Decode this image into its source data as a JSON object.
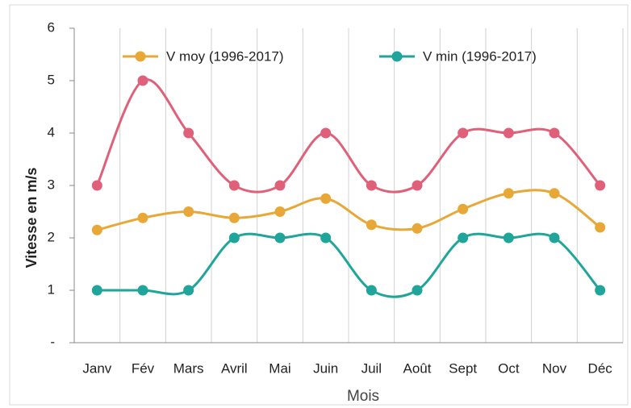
{
  "chart_data": {
    "type": "line",
    "categories": [
      "Janv",
      "Fév",
      "Mars",
      "Avril",
      "Mai",
      "Juin",
      "Juil",
      "Août",
      "Sept",
      "Oct",
      "Nov",
      "Déc"
    ],
    "series": [
      {
        "color": "#e0607a",
        "values": [
          3,
          5,
          4,
          3,
          3,
          4,
          3,
          3,
          4,
          4,
          4,
          3
        ]
      },
      {
        "name": "V moy (1996-2017)",
        "color": "#e8a838",
        "values": [
          2.15,
          2.38,
          2.5,
          2.38,
          2.5,
          2.75,
          2.25,
          2.18,
          2.55,
          2.85,
          2.85,
          2.2
        ]
      },
      {
        "name": "V min (1996-2017)",
        "color": "#1fa59a",
        "values": [
          1,
          1,
          1,
          2,
          2,
          2,
          1,
          1,
          2,
          2,
          2,
          1
        ]
      }
    ],
    "ylim": [
      0,
      6
    ],
    "yticks": [
      {
        "value": 0,
        "label": "-"
      },
      1,
      2,
      3,
      4,
      5,
      6
    ],
    "y_label": "Vitesse en m/s",
    "x_label": "Mois",
    "smooth": true,
    "legend": "top"
  }
}
